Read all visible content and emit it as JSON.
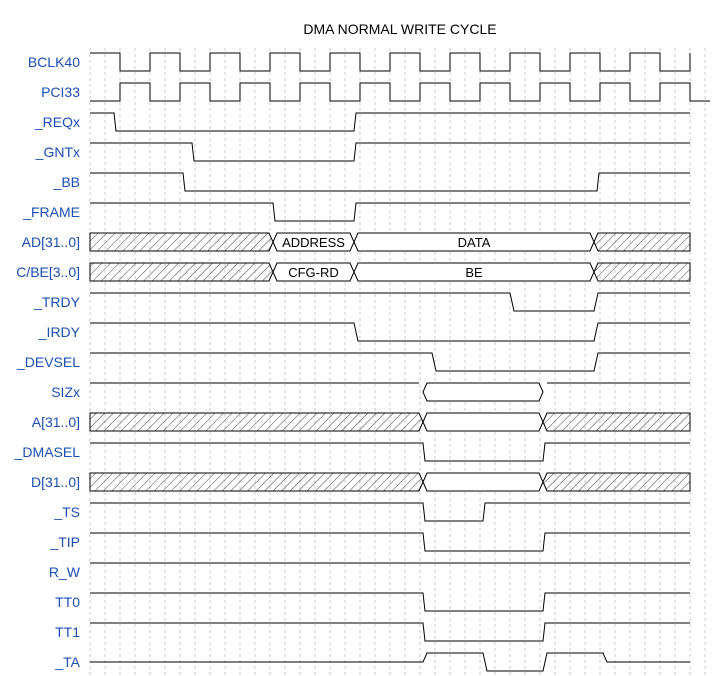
{
  "title": "DMA NORMAL WRITE CYCLE",
  "colors": {
    "label": "#1a4fb5",
    "line": "#000000",
    "grid": "#c8c8c8",
    "hatch": "#444444"
  },
  "time_units": 20,
  "signals": [
    {
      "name": "BCLK40",
      "type": "clock",
      "period": 2,
      "start": "high",
      "offset": 0
    },
    {
      "name": "PCI33",
      "type": "clock",
      "period": 2,
      "start": "low",
      "offset": 1,
      "overhang": true
    },
    {
      "name": "_REQx",
      "type": "digital",
      "init": 1,
      "edges": [
        [
          0.8,
          0
        ],
        [
          8.8,
          1
        ]
      ]
    },
    {
      "name": "_GNTx",
      "type": "digital",
      "init": 1,
      "edges": [
        [
          3.4,
          0
        ],
        [
          8.8,
          1
        ]
      ]
    },
    {
      "name": "_BB",
      "type": "digital",
      "init": 1,
      "edges": [
        [
          3.1,
          0
        ],
        [
          16.9,
          1
        ]
      ]
    },
    {
      "name": "_FRAME",
      "type": "digital",
      "init": 1,
      "edges": [
        [
          6.1,
          0
        ],
        [
          8.8,
          1
        ]
      ]
    },
    {
      "name": "AD[31..0]",
      "type": "bus",
      "segments": [
        {
          "from": 0,
          "to": 6.1,
          "kind": "hatch"
        },
        {
          "from": 6.1,
          "to": 8.8,
          "kind": "data",
          "label": "ADDRESS"
        },
        {
          "from": 8.8,
          "to": 16.8,
          "kind": "data",
          "label": "DATA"
        },
        {
          "from": 16.8,
          "to": 20,
          "kind": "hatch"
        }
      ]
    },
    {
      "name": "C/BE[3..0]",
      "type": "bus",
      "segments": [
        {
          "from": 0,
          "to": 6.1,
          "kind": "hatch"
        },
        {
          "from": 6.1,
          "to": 8.8,
          "kind": "data",
          "label": "CFG-RD"
        },
        {
          "from": 8.8,
          "to": 16.8,
          "kind": "data",
          "label": "BE"
        },
        {
          "from": 16.8,
          "to": 20,
          "kind": "hatch"
        }
      ]
    },
    {
      "name": "_TRDY",
      "type": "tristate",
      "init": 1,
      "edges": [
        [
          11.4,
          "hi"
        ],
        [
          14,
          0
        ],
        [
          16.8,
          "hi"
        ],
        [
          19.4,
          1
        ]
      ]
    },
    {
      "name": "_IRDY",
      "type": "tristate",
      "init": 1,
      "edges": [
        [
          8.8,
          0
        ],
        [
          16.8,
          "hi"
        ],
        [
          19.4,
          1
        ]
      ]
    },
    {
      "name": "_DEVSEL",
      "type": "tristate",
      "init": 1,
      "edges": [
        [
          11.4,
          0
        ],
        [
          16.8,
          "hi"
        ],
        [
          19.4,
          1
        ]
      ]
    },
    {
      "name": "SIZx",
      "type": "bus",
      "segments": [
        {
          "from": 0,
          "to": 11.1,
          "kind": "line-high"
        },
        {
          "from": 11.1,
          "to": 15.1,
          "kind": "data",
          "label": ""
        },
        {
          "from": 15.1,
          "to": 20,
          "kind": "line-high"
        }
      ]
    },
    {
      "name": "A[31..0]",
      "type": "bus",
      "segments": [
        {
          "from": 0,
          "to": 11.1,
          "kind": "hatch"
        },
        {
          "from": 11.1,
          "to": 15.1,
          "kind": "data",
          "label": ""
        },
        {
          "from": 15.1,
          "to": 20,
          "kind": "hatch"
        }
      ]
    },
    {
      "name": "_DMASEL",
      "type": "digital",
      "init": 1,
      "edges": [
        [
          11.1,
          0
        ],
        [
          15.1,
          1
        ]
      ]
    },
    {
      "name": "D[31..0]",
      "type": "bus",
      "segments": [
        {
          "from": 0,
          "to": 11.1,
          "kind": "hatch"
        },
        {
          "from": 11.1,
          "to": 15.1,
          "kind": "data",
          "label": ""
        },
        {
          "from": 15.1,
          "to": 20,
          "kind": "hatch"
        }
      ]
    },
    {
      "name": "_TS",
      "type": "digital",
      "init": 1,
      "edges": [
        [
          11.1,
          0
        ],
        [
          13.1,
          1
        ]
      ]
    },
    {
      "name": "_TIP",
      "type": "digital",
      "init": 1,
      "edges": [
        [
          11.1,
          0
        ],
        [
          15.1,
          1
        ]
      ]
    },
    {
      "name": "R_W",
      "type": "digital",
      "init": 1,
      "edges": []
    },
    {
      "name": "TT0",
      "type": "digital",
      "init": 1,
      "edges": [
        [
          11.1,
          0
        ],
        [
          15.1,
          1
        ]
      ]
    },
    {
      "name": "TT1",
      "type": "digital",
      "init": 1,
      "edges": [
        [
          11.1,
          0
        ],
        [
          15.1,
          1
        ]
      ]
    },
    {
      "name": "_TA",
      "type": "tristate",
      "init": "mid",
      "edges": [
        [
          11.1,
          1
        ],
        [
          13.1,
          0
        ],
        [
          15.1,
          1
        ],
        [
          17.1,
          "mid"
        ]
      ]
    }
  ]
}
